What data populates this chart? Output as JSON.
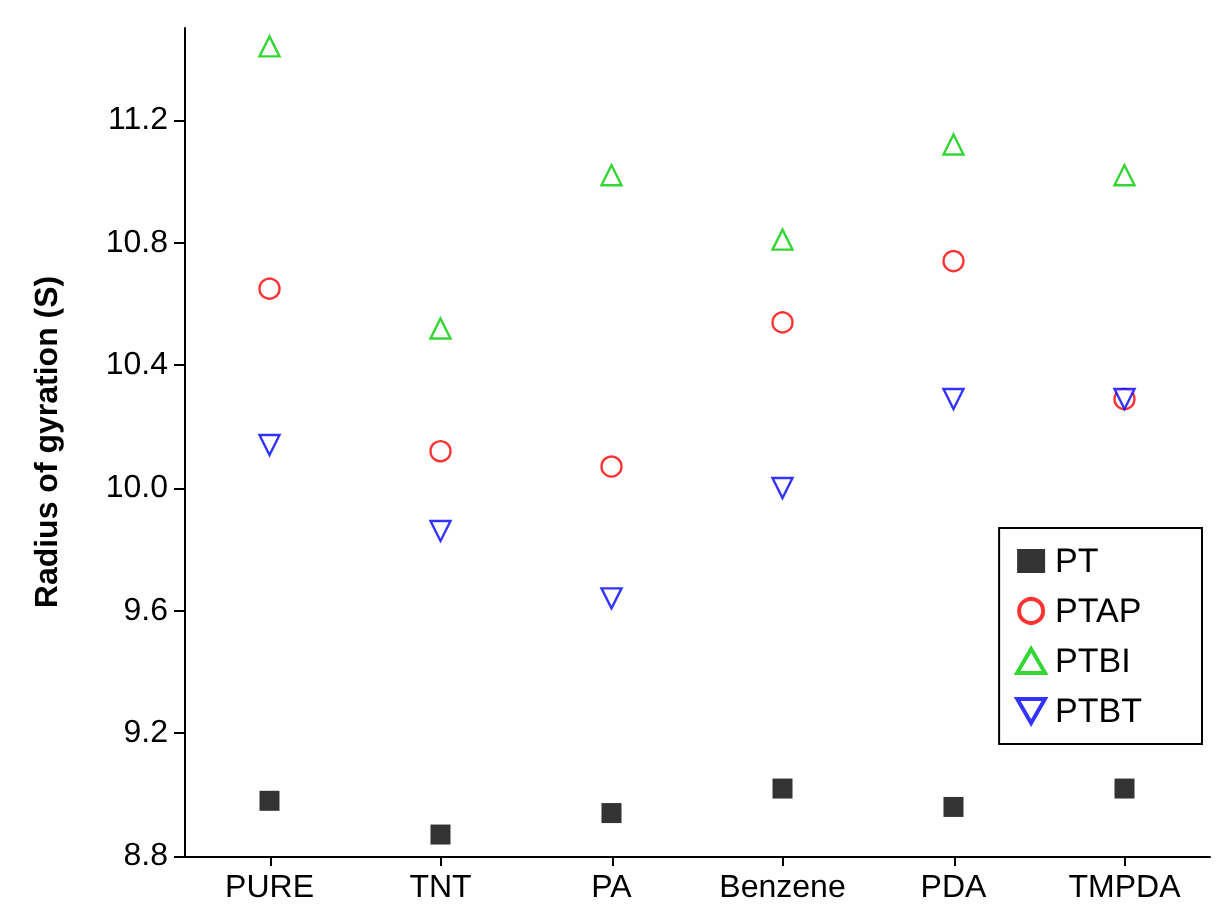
{
  "chart_data": {
    "type": "scatter",
    "ylabel": "Radius of gyration (S)",
    "categories": [
      "PURE",
      "TNT",
      "PA",
      "Benzene",
      "PDA",
      "TMPDA"
    ],
    "series": [
      {
        "name": "PT",
        "color": "#000000",
        "marker": "square",
        "values": [
          8.98,
          8.87,
          8.94,
          9.02,
          8.96,
          9.02
        ]
      },
      {
        "name": "PTAP",
        "color": "#ff0000",
        "marker": "circle",
        "values": [
          10.65,
          10.12,
          10.07,
          10.54,
          10.74,
          10.29
        ]
      },
      {
        "name": "PTBI",
        "color": "#00cc00",
        "marker": "triangle",
        "values": [
          11.44,
          10.52,
          11.02,
          10.81,
          11.12,
          11.02
        ]
      },
      {
        "name": "PTBT",
        "color": "#0000ff",
        "marker": "triangle-down",
        "values": [
          10.14,
          9.86,
          9.64,
          10.0,
          10.29,
          10.29
        ]
      }
    ],
    "ylim": [
      8.8,
      11.5
    ],
    "yticks": [
      8.8,
      9.2,
      9.6,
      {
        "value": 10,
        "label": "10.0"
      },
      10.4,
      10.8,
      11.2
    ],
    "grid": false,
    "legend": "bottom right"
  }
}
